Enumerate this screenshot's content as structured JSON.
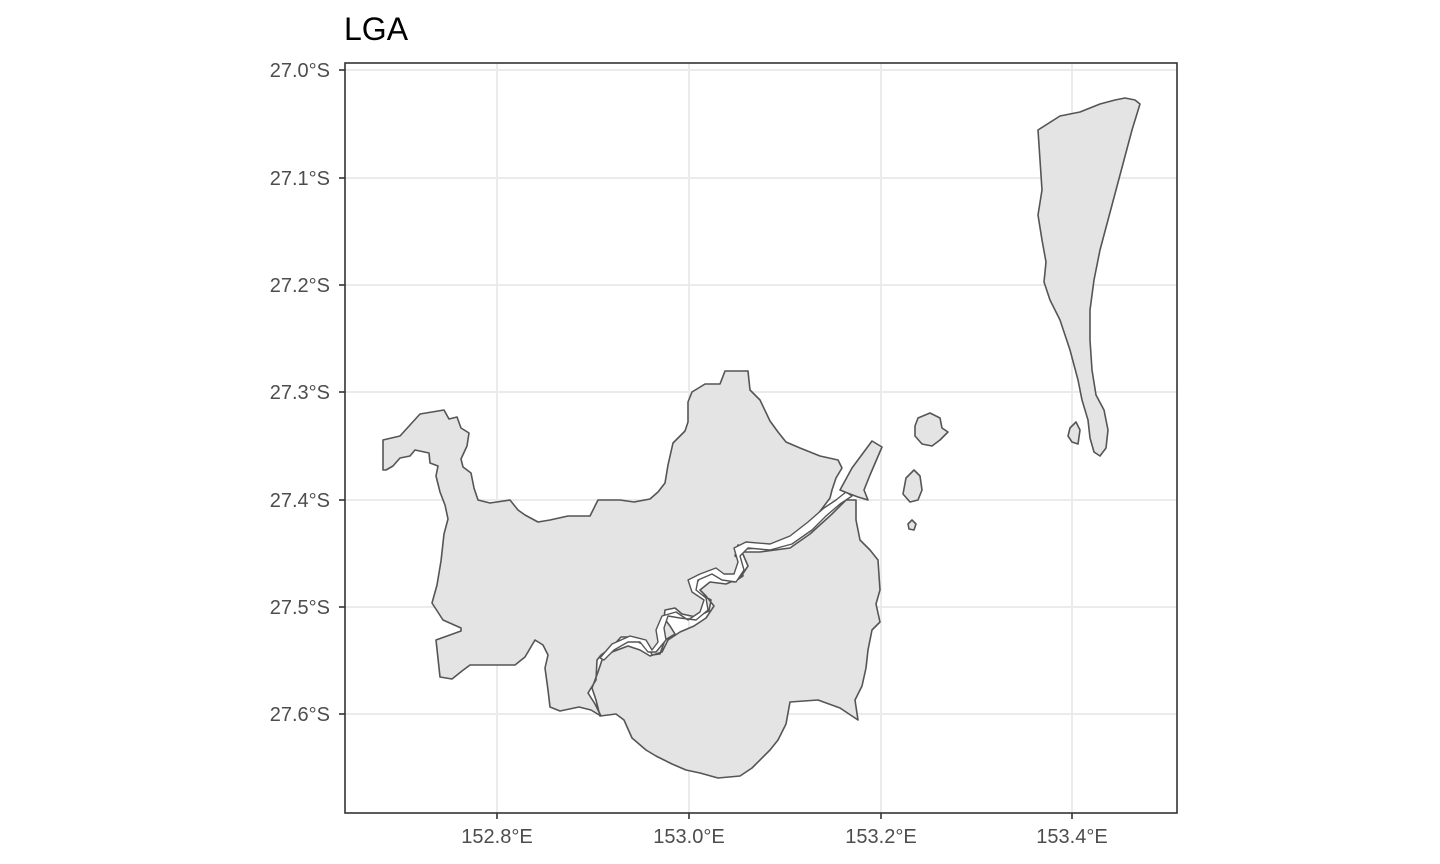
{
  "title": "LGA",
  "map": {
    "fill_color": "#e4e4e4",
    "outline_color": "#555555",
    "grid": true,
    "background": "#ffffff"
  },
  "axes": {
    "x_ticks": [
      "152.8°E",
      "153.0°E",
      "153.2°E",
      "153.4°E"
    ],
    "y_ticks": [
      "27.0°S",
      "27.1°S",
      "27.2°S",
      "27.3°S",
      "27.4°S",
      "27.5°S",
      "27.6°S"
    ]
  }
}
